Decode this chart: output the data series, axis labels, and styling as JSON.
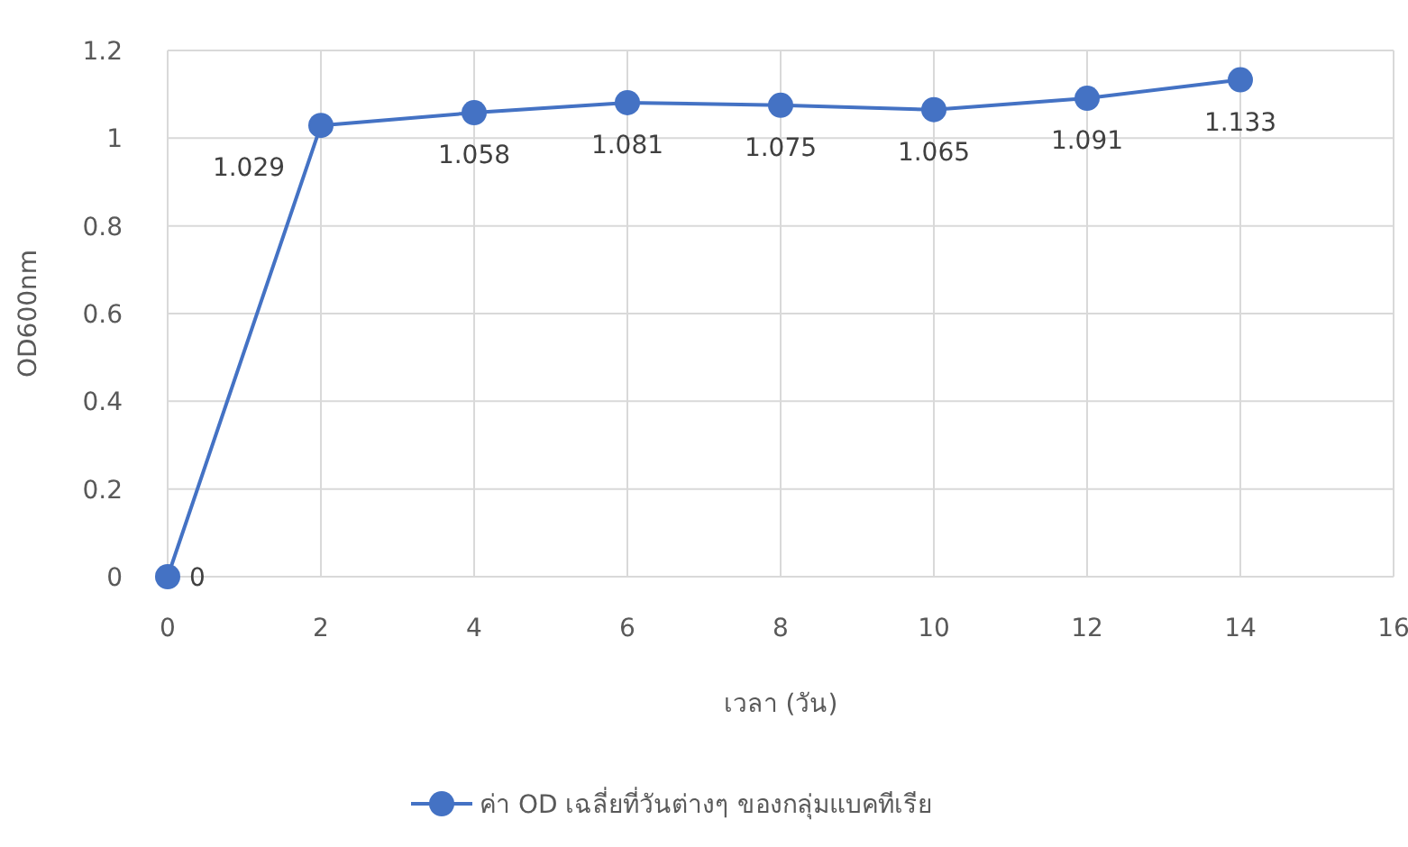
{
  "chart_data": {
    "type": "line",
    "xlabel": "เวลา (วัน)",
    "ylabel": "OD600nm",
    "x": [
      0,
      2,
      4,
      6,
      8,
      10,
      12,
      14
    ],
    "series": [
      {
        "name": "ค่า OD เฉลี่ยที่วันต่างๆ ของกลุ่มแบคทีเรีย",
        "color": "#4472c4",
        "values": [
          0,
          1.029,
          1.058,
          1.081,
          1.075,
          1.065,
          1.091,
          1.133
        ]
      }
    ],
    "xlim": [
      0,
      16
    ],
    "xticks": [
      0,
      2,
      4,
      6,
      8,
      10,
      12,
      14,
      16
    ],
    "ylim": [
      0,
      1.2
    ],
    "yticks": [
      0,
      0.2,
      0.4,
      0.6,
      0.8,
      1,
      1.2
    ],
    "grid": true,
    "legend": "bottom",
    "marker": "circle",
    "line_style": "solid",
    "data_labels": true
  }
}
